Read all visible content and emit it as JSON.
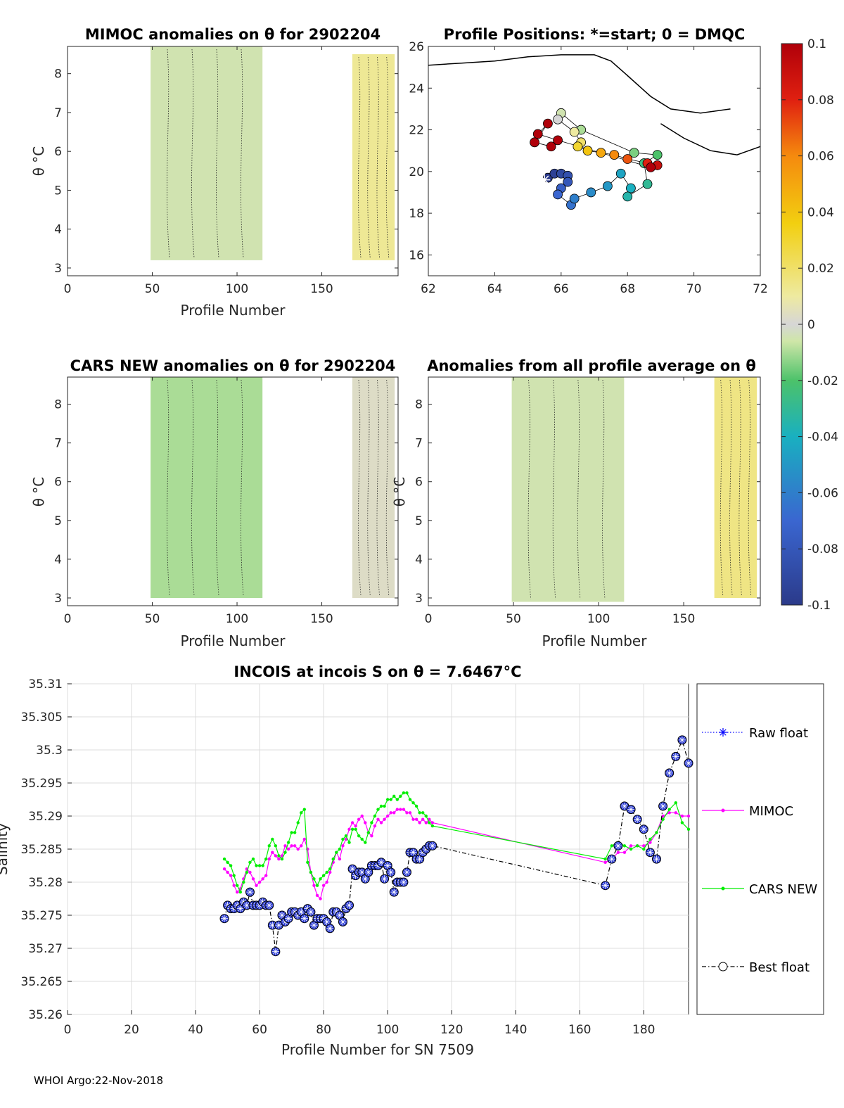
{
  "footer": "WHOI Argo:22-Nov-2018",
  "colorbar": {
    "ticks": [
      "0.1",
      "0.08",
      "0.06",
      "0.04",
      "0.02",
      "0",
      "-0.02",
      "-0.04",
      "-0.06",
      "-0.08",
      "-0.1"
    ],
    "range": [
      -0.1,
      0.1
    ]
  },
  "chart_data": [
    {
      "id": "mimoc",
      "type": "heatmap",
      "title": "MIMOC anomalies on θ  for 2902204",
      "xlabel": "Profile Number",
      "ylabel": "θ °C",
      "xlim": [
        0,
        195
      ],
      "ylim": [
        2.8,
        8.7
      ],
      "xticks": [
        0,
        50,
        100,
        150
      ],
      "yticks": [
        3,
        4,
        5,
        6,
        7,
        8
      ],
      "blocks": [
        {
          "x": [
            49,
            115
          ],
          "y": [
            3.2,
            8.7
          ],
          "value": -0.005
        },
        {
          "x": [
            168,
            193
          ],
          "y": [
            3.2,
            8.5
          ],
          "value": 0.012
        }
      ]
    },
    {
      "id": "positions",
      "type": "scatter",
      "title": "Profile Positions: *=start; 0 = DMQC",
      "xlim": [
        62,
        72
      ],
      "ylim": [
        15,
        26
      ],
      "xticks": [
        62,
        64,
        66,
        68,
        70,
        72
      ],
      "yticks": [
        16,
        18,
        20,
        22,
        24,
        26
      ],
      "coastline": [
        [
          62,
          25.1
        ],
        [
          63,
          25.2
        ],
        [
          64,
          25.3
        ],
        [
          65,
          25.5
        ],
        [
          66,
          25.6
        ],
        [
          67,
          25.6
        ],
        [
          67.5,
          25.3
        ],
        [
          68,
          24.6
        ],
        [
          68.7,
          23.6
        ],
        [
          69.3,
          23.0
        ],
        [
          70.2,
          22.8
        ],
        [
          71.1,
          23.0
        ]
      ],
      "coastline2": [
        [
          69.0,
          22.3
        ],
        [
          69.7,
          21.6
        ],
        [
          70.5,
          21.0
        ],
        [
          71.3,
          20.8
        ],
        [
          72,
          21.2
        ]
      ],
      "start": [
        65.5,
        19.6
      ],
      "points": [
        {
          "lon": 65.6,
          "lat": 19.7,
          "v": -0.1
        },
        {
          "lon": 65.8,
          "lat": 19.9,
          "v": -0.095
        },
        {
          "lon": 66.0,
          "lat": 19.9,
          "v": -0.09
        },
        {
          "lon": 66.2,
          "lat": 19.8,
          "v": -0.085
        },
        {
          "lon": 66.2,
          "lat": 19.5,
          "v": -0.08
        },
        {
          "lon": 66.0,
          "lat": 19.2,
          "v": -0.075
        },
        {
          "lon": 65.9,
          "lat": 18.9,
          "v": -0.07
        },
        {
          "lon": 66.3,
          "lat": 18.4,
          "v": -0.065
        },
        {
          "lon": 66.4,
          "lat": 18.7,
          "v": -0.06
        },
        {
          "lon": 66.9,
          "lat": 19.0,
          "v": -0.055
        },
        {
          "lon": 67.4,
          "lat": 19.3,
          "v": -0.05
        },
        {
          "lon": 67.8,
          "lat": 19.9,
          "v": -0.045
        },
        {
          "lon": 68.1,
          "lat": 19.2,
          "v": -0.04
        },
        {
          "lon": 68.0,
          "lat": 18.8,
          "v": -0.035
        },
        {
          "lon": 68.6,
          "lat": 19.4,
          "v": -0.03
        },
        {
          "lon": 68.5,
          "lat": 20.4,
          "v": -0.025
        },
        {
          "lon": 68.9,
          "lat": 20.8,
          "v": -0.02
        },
        {
          "lon": 68.2,
          "lat": 20.9,
          "v": -0.015
        },
        {
          "lon": 66.6,
          "lat": 22.0,
          "v": -0.01
        },
        {
          "lon": 66.0,
          "lat": 22.8,
          "v": -0.005
        },
        {
          "lon": 65.9,
          "lat": 22.5,
          "v": 0.0
        },
        {
          "lon": 66.4,
          "lat": 21.9,
          "v": 0.01
        },
        {
          "lon": 66.6,
          "lat": 21.4,
          "v": 0.02
        },
        {
          "lon": 66.5,
          "lat": 21.2,
          "v": 0.03
        },
        {
          "lon": 66.8,
          "lat": 21.0,
          "v": 0.04
        },
        {
          "lon": 67.2,
          "lat": 20.9,
          "v": 0.05
        },
        {
          "lon": 67.6,
          "lat": 20.8,
          "v": 0.06
        },
        {
          "lon": 68.0,
          "lat": 20.6,
          "v": 0.07
        },
        {
          "lon": 68.6,
          "lat": 20.4,
          "v": 0.08
        },
        {
          "lon": 68.9,
          "lat": 20.3,
          "v": 0.09
        },
        {
          "lon": 68.7,
          "lat": 20.2,
          "v": 0.1
        },
        {
          "lon": 65.9,
          "lat": 21.5,
          "v": 0.1
        },
        {
          "lon": 65.3,
          "lat": 21.8,
          "v": 0.1
        },
        {
          "lon": 65.6,
          "lat": 22.3,
          "v": 0.1
        },
        {
          "lon": 65.2,
          "lat": 21.4,
          "v": 0.1
        },
        {
          "lon": 65.7,
          "lat": 21.2,
          "v": 0.1
        }
      ]
    },
    {
      "id": "cars",
      "type": "heatmap",
      "title": "CARS NEW anomalies on θ for 2902204",
      "xlabel": "Profile Number",
      "ylabel": "θ °C",
      "xlim": [
        0,
        195
      ],
      "ylim": [
        2.8,
        8.7
      ],
      "xticks": [
        0,
        50,
        100,
        150
      ],
      "yticks": [
        3,
        4,
        5,
        6,
        7,
        8
      ],
      "blocks": [
        {
          "x": [
            49,
            115
          ],
          "y": [
            3.0,
            8.7
          ],
          "value": -0.01
        },
        {
          "x": [
            168,
            193
          ],
          "y": [
            3.0,
            8.7
          ],
          "value": 0.003
        }
      ]
    },
    {
      "id": "allavg",
      "type": "heatmap",
      "title": "Anomalies from all profile average on θ",
      "xlabel": "Profile Number",
      "ylabel": "θ °C",
      "xlim": [
        0,
        195
      ],
      "ylim": [
        2.8,
        8.7
      ],
      "xticks": [
        0,
        50,
        100,
        150
      ],
      "yticks": [
        3,
        4,
        5,
        6,
        7,
        8
      ],
      "blocks": [
        {
          "x": [
            49,
            115
          ],
          "y": [
            2.9,
            8.7
          ],
          "value": -0.005
        },
        {
          "x": [
            168,
            193
          ],
          "y": [
            3.0,
            8.7
          ],
          "value": 0.015
        }
      ]
    },
    {
      "id": "incois",
      "type": "line",
      "title": "INCOIS at incois S on θ = 7.6467°C",
      "xlabel": "Profile Number for SN 7509",
      "ylabel": "Salinity",
      "xlim": [
        0,
        194
      ],
      "ylim": [
        35.26,
        35.31
      ],
      "xticks": [
        0,
        20,
        40,
        60,
        80,
        100,
        120,
        140,
        160,
        180
      ],
      "yticks": [
        "35.26",
        "35.265",
        "35.27",
        "35.275",
        "35.28",
        "35.285",
        "35.29",
        "35.295",
        "35.3",
        "35.305",
        "35.31"
      ],
      "legend": [
        {
          "name": "Raw float",
          "color": "#0000ff",
          "marker": "star",
          "dash": "dotted"
        },
        {
          "name": "MIMOC",
          "color": "#ff00ff",
          "marker": "dot",
          "dash": "solid"
        },
        {
          "name": "CARS NEW",
          "color": "#00ee00",
          "marker": "dot",
          "dash": "solid"
        },
        {
          "name": "Best float",
          "color": "#000000",
          "marker": "circle",
          "dash": "dashdot"
        }
      ],
      "series": [
        {
          "name": "MIMOC",
          "x": [
            49,
            50,
            51,
            52,
            53,
            54,
            55,
            56,
            57,
            58,
            59,
            60,
            61,
            62,
            63,
            64,
            65,
            66,
            67,
            68,
            69,
            70,
            71,
            72,
            73,
            74,
            75,
            76,
            77,
            78,
            79,
            80,
            81,
            82,
            83,
            84,
            85,
            86,
            87,
            88,
            89,
            90,
            91,
            92,
            93,
            94,
            95,
            96,
            97,
            98,
            99,
            100,
            101,
            102,
            103,
            104,
            105,
            106,
            107,
            108,
            109,
            110,
            111,
            112,
            113,
            114,
            168,
            170,
            172,
            174,
            176,
            178,
            180,
            182,
            184,
            186,
            188,
            190,
            192,
            194
          ],
          "y": [
            35.282,
            35.2815,
            35.281,
            35.2795,
            35.2785,
            35.279,
            35.2805,
            35.282,
            35.2815,
            35.2805,
            35.2795,
            35.28,
            35.2805,
            35.281,
            35.2835,
            35.2845,
            35.284,
            35.2835,
            35.284,
            35.2855,
            35.285,
            35.2855,
            35.2855,
            35.285,
            35.2855,
            35.2865,
            35.285,
            35.2815,
            35.2795,
            35.278,
            35.2775,
            35.2795,
            35.28,
            35.2815,
            35.283,
            35.2845,
            35.2835,
            35.2855,
            35.2865,
            35.288,
            35.289,
            35.2885,
            35.2895,
            35.29,
            35.289,
            35.2875,
            35.287,
            35.2885,
            35.2895,
            35.289,
            35.2895,
            35.29,
            35.2905,
            35.2905,
            35.291,
            35.291,
            35.291,
            35.2905,
            35.2905,
            35.2895,
            35.2895,
            35.289,
            35.2895,
            35.289,
            35.2895,
            35.289,
            35.283,
            35.2835,
            35.2845,
            35.2845,
            35.2855,
            35.2855,
            35.2855,
            35.286,
            35.2875,
            35.29,
            35.2905,
            35.2905,
            35.29,
            35.29
          ]
        },
        {
          "name": "CARS NEW",
          "x": [
            49,
            50,
            51,
            52,
            53,
            54,
            55,
            56,
            57,
            58,
            59,
            60,
            61,
            62,
            63,
            64,
            65,
            66,
            67,
            68,
            69,
            70,
            71,
            72,
            73,
            74,
            75,
            76,
            77,
            78,
            79,
            80,
            81,
            82,
            83,
            84,
            85,
            86,
            87,
            88,
            89,
            90,
            91,
            92,
            93,
            94,
            95,
            96,
            97,
            98,
            99,
            100,
            101,
            102,
            103,
            104,
            105,
            106,
            107,
            108,
            109,
            110,
            111,
            112,
            113,
            114,
            168,
            170,
            172,
            174,
            176,
            178,
            180,
            182,
            184,
            186,
            188,
            190,
            192,
            194
          ],
          "y": [
            35.2835,
            35.283,
            35.2825,
            35.281,
            35.2795,
            35.2785,
            35.28,
            35.2815,
            35.283,
            35.2835,
            35.2825,
            35.2825,
            35.2825,
            35.2835,
            35.2855,
            35.2865,
            35.2855,
            35.284,
            35.2835,
            35.2845,
            35.286,
            35.2875,
            35.2875,
            35.289,
            35.2905,
            35.291,
            35.283,
            35.2815,
            35.2805,
            35.2795,
            35.2805,
            35.281,
            35.2815,
            35.282,
            35.2835,
            35.2845,
            35.285,
            35.2865,
            35.287,
            35.286,
            35.288,
            35.288,
            35.287,
            35.2865,
            35.286,
            35.2875,
            35.289,
            35.29,
            35.291,
            35.2915,
            35.2915,
            35.2925,
            35.2925,
            35.293,
            35.2925,
            35.293,
            35.2935,
            35.2935,
            35.2925,
            35.292,
            35.2915,
            35.2905,
            35.2905,
            35.29,
            35.289,
            35.2885,
            35.2835,
            35.2855,
            35.286,
            35.2855,
            35.285,
            35.2855,
            35.285,
            35.2865,
            35.2875,
            35.2895,
            35.291,
            35.292,
            35.289,
            35.288
          ]
        },
        {
          "name": "Best float",
          "x": [
            49,
            50,
            51,
            52,
            53,
            54,
            55,
            56,
            57,
            58,
            59,
            60,
            61,
            62,
            63,
            64,
            65,
            66,
            67,
            68,
            69,
            70,
            71,
            72,
            73,
            74,
            75,
            76,
            77,
            78,
            79,
            80,
            81,
            82,
            83,
            84,
            85,
            86,
            87,
            88,
            89,
            90,
            91,
            92,
            93,
            94,
            95,
            96,
            97,
            98,
            99,
            100,
            101,
            102,
            103,
            104,
            105,
            106,
            107,
            108,
            109,
            110,
            111,
            112,
            113,
            114,
            168,
            170,
            172,
            174,
            176,
            178,
            180,
            182,
            184,
            186,
            188,
            190,
            192,
            194
          ],
          "y": [
            35.2745,
            35.2765,
            35.276,
            35.276,
            35.2765,
            35.276,
            35.277,
            35.2765,
            35.2785,
            35.2765,
            35.2765,
            35.2765,
            35.277,
            35.2765,
            35.2765,
            35.2735,
            35.2695,
            35.2735,
            35.275,
            35.274,
            35.2745,
            35.2755,
            35.2755,
            35.275,
            35.2755,
            35.2745,
            35.276,
            35.2755,
            35.2735,
            35.2745,
            35.2745,
            35.2745,
            35.274,
            35.273,
            35.2755,
            35.2755,
            35.275,
            35.274,
            35.276,
            35.2765,
            35.282,
            35.281,
            35.2815,
            35.2815,
            35.2805,
            35.2815,
            35.2825,
            35.2825,
            35.2825,
            35.283,
            35.2805,
            35.2825,
            35.2815,
            35.2785,
            35.28,
            35.28,
            35.28,
            35.2815,
            35.2845,
            35.2845,
            35.2835,
            35.2835,
            35.2845,
            35.285,
            35.2855,
            35.2855,
            35.2795,
            35.2835,
            35.2855,
            35.2915,
            35.291,
            35.2895,
            35.288,
            35.2845,
            35.2835,
            35.2915,
            35.2965,
            35.299,
            35.3015,
            35.298
          ]
        }
      ]
    }
  ]
}
